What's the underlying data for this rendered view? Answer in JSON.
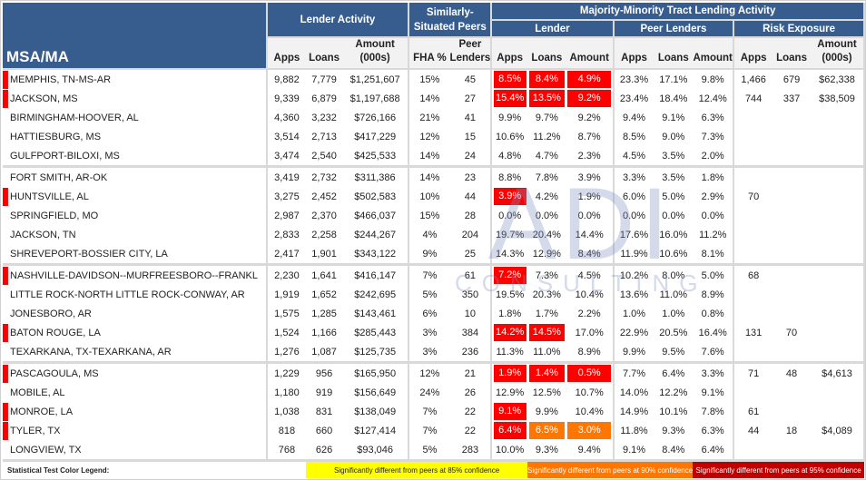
{
  "header": {
    "msa_label": "MSA/MA",
    "lender_activity": "Lender Activity",
    "similarly_situated": "Similarly-Situated Peers",
    "majority_minority": "Majority-Minority Tract Lending Activity",
    "lender": "Lender",
    "peer_lenders": "Peer Lenders",
    "risk_exposure": "Risk Exposure",
    "columns": [
      "Apps",
      "Loans",
      "Amount (000s)",
      "FHA %",
      "Peer Lenders",
      "Apps",
      "Loans",
      "Amount",
      "Apps",
      "Loans",
      "Amount",
      "Apps",
      "Loans",
      "Amount (000s)"
    ]
  },
  "colors": {
    "header_bg": "#375d8f",
    "red": "#ff0000",
    "orange": "#ff7700",
    "dark_red": "#c00000",
    "yellow": "#ffff00"
  },
  "rows": [
    {
      "name": "MEMPHIS, TN-MS-AR",
      "flag": true,
      "values": [
        "9,882",
        "7,779",
        "$1,251,607",
        "15%",
        "45",
        "8.5%",
        "8.4%",
        "4.9%",
        "23.3%",
        "17.1%",
        "9.8%",
        "1,466",
        "679",
        "$62,338"
      ],
      "hl": {
        "5": "red",
        "6": "red",
        "7": "red"
      }
    },
    {
      "name": "JACKSON, MS",
      "flag": true,
      "values": [
        "9,339",
        "6,879",
        "$1,197,688",
        "14%",
        "27",
        "15.4%",
        "13.5%",
        "9.2%",
        "23.4%",
        "18.4%",
        "12.4%",
        "744",
        "337",
        "$38,509"
      ],
      "hl": {
        "5": "red",
        "6": "red",
        "7": "red"
      }
    },
    {
      "name": "BIRMINGHAM-HOOVER, AL",
      "flag": false,
      "values": [
        "4,360",
        "3,232",
        "$726,166",
        "21%",
        "41",
        "9.9%",
        "9.7%",
        "9.2%",
        "9.4%",
        "9.1%",
        "6.3%",
        "",
        "",
        ""
      ],
      "hl": {}
    },
    {
      "name": "HATTIESBURG, MS",
      "flag": false,
      "values": [
        "3,514",
        "2,713",
        "$417,229",
        "12%",
        "15",
        "10.6%",
        "11.2%",
        "8.7%",
        "8.5%",
        "9.0%",
        "7.3%",
        "",
        "",
        ""
      ],
      "hl": {}
    },
    {
      "name": "GULFPORT-BILOXI, MS",
      "flag": false,
      "values": [
        "3,474",
        "2,540",
        "$425,533",
        "14%",
        "24",
        "4.8%",
        "4.7%",
        "2.3%",
        "4.5%",
        "3.5%",
        "2.0%",
        "",
        "",
        ""
      ],
      "hl": {}
    },
    {
      "name": "FORT SMITH, AR-OK",
      "flag": false,
      "values": [
        "3,419",
        "2,732",
        "$311,386",
        "14%",
        "23",
        "8.8%",
        "7.8%",
        "3.9%",
        "3.3%",
        "3.5%",
        "1.8%",
        "",
        "",
        ""
      ],
      "hl": {}
    },
    {
      "name": "HUNTSVILLE, AL",
      "flag": true,
      "values": [
        "3,275",
        "2,452",
        "$502,583",
        "10%",
        "44",
        "3.9%",
        "4.2%",
        "1.9%",
        "6.0%",
        "5.0%",
        "2.9%",
        "70",
        "",
        ""
      ],
      "hl": {
        "5": "red"
      }
    },
    {
      "name": "SPRINGFIELD, MO",
      "flag": false,
      "values": [
        "2,987",
        "2,370",
        "$466,037",
        "15%",
        "28",
        "0.0%",
        "0.0%",
        "0.0%",
        "0.0%",
        "0.0%",
        "0.0%",
        "",
        "",
        ""
      ],
      "hl": {}
    },
    {
      "name": "JACKSON, TN",
      "flag": false,
      "values": [
        "2,833",
        "2,258",
        "$244,267",
        "4%",
        "204",
        "19.7%",
        "20.4%",
        "14.4%",
        "17.6%",
        "16.0%",
        "11.2%",
        "",
        "",
        ""
      ],
      "hl": {}
    },
    {
      "name": "SHREVEPORT-BOSSIER CITY, LA",
      "flag": false,
      "values": [
        "2,417",
        "1,901",
        "$343,122",
        "9%",
        "25",
        "14.3%",
        "12.9%",
        "8.4%",
        "11.9%",
        "10.6%",
        "8.1%",
        "",
        "",
        ""
      ],
      "hl": {}
    },
    {
      "name": "NASHVILLE-DAVIDSON--MURFREESBORO--FRANKL",
      "flag": true,
      "values": [
        "2,230",
        "1,641",
        "$416,147",
        "7%",
        "61",
        "7.2%",
        "7.3%",
        "4.5%",
        "10.2%",
        "8.0%",
        "5.0%",
        "68",
        "",
        ""
      ],
      "hl": {
        "5": "red"
      }
    },
    {
      "name": "LITTLE ROCK-NORTH LITTLE ROCK-CONWAY, AR",
      "flag": false,
      "values": [
        "1,919",
        "1,652",
        "$242,695",
        "5%",
        "350",
        "19.5%",
        "20.3%",
        "10.4%",
        "13.6%",
        "11.0%",
        "8.9%",
        "",
        "",
        ""
      ],
      "hl": {}
    },
    {
      "name": "JONESBORO, AR",
      "flag": false,
      "values": [
        "1,575",
        "1,285",
        "$143,461",
        "6%",
        "10",
        "1.8%",
        "1.7%",
        "2.2%",
        "1.0%",
        "1.0%",
        "0.8%",
        "",
        "",
        ""
      ],
      "hl": {}
    },
    {
      "name": "BATON ROUGE, LA",
      "flag": true,
      "values": [
        "1,524",
        "1,166",
        "$285,443",
        "3%",
        "384",
        "14.2%",
        "14.5%",
        "17.0%",
        "22.9%",
        "20.5%",
        "16.4%",
        "131",
        "70",
        ""
      ],
      "hl": {
        "5": "red",
        "6": "red"
      }
    },
    {
      "name": "TEXARKANA, TX-TEXARKANA, AR",
      "flag": false,
      "values": [
        "1,276",
        "1,087",
        "$125,735",
        "3%",
        "236",
        "11.3%",
        "11.0%",
        "8.9%",
        "9.9%",
        "9.5%",
        "7.6%",
        "",
        "",
        ""
      ],
      "hl": {}
    },
    {
      "name": "PASCAGOULA, MS",
      "flag": true,
      "values": [
        "1,229",
        "956",
        "$165,950",
        "12%",
        "21",
        "1.9%",
        "1.4%",
        "0.5%",
        "7.7%",
        "6.4%",
        "3.3%",
        "71",
        "48",
        "$4,613"
      ],
      "hl": {
        "5": "red",
        "6": "red",
        "7": "red"
      }
    },
    {
      "name": "MOBILE, AL",
      "flag": false,
      "values": [
        "1,180",
        "919",
        "$156,649",
        "24%",
        "26",
        "12.9%",
        "12.5%",
        "10.7%",
        "14.0%",
        "12.2%",
        "9.1%",
        "",
        "",
        ""
      ],
      "hl": {}
    },
    {
      "name": "MONROE, LA",
      "flag": true,
      "values": [
        "1,038",
        "831",
        "$138,049",
        "7%",
        "22",
        "9.1%",
        "9.9%",
        "10.4%",
        "14.9%",
        "10.1%",
        "7.8%",
        "61",
        "",
        ""
      ],
      "hl": {
        "5": "red"
      }
    },
    {
      "name": "TYLER, TX",
      "flag": true,
      "values": [
        "818",
        "660",
        "$127,414",
        "7%",
        "22",
        "6.4%",
        "6.5%",
        "3.0%",
        "11.8%",
        "9.3%",
        "6.3%",
        "44",
        "18",
        "$4,089"
      ],
      "hl": {
        "5": "red",
        "6": "orange",
        "7": "orange"
      }
    },
    {
      "name": "LONGVIEW, TX",
      "flag": false,
      "values": [
        "768",
        "626",
        "$93,046",
        "5%",
        "283",
        "10.0%",
        "9.3%",
        "9.4%",
        "9.1%",
        "8.4%",
        "6.4%",
        "",
        "",
        ""
      ],
      "hl": {}
    }
  ],
  "legend": {
    "title": "Statistical Test Color Legend:",
    "items": [
      {
        "label": "Significantly different from peers at 85% confidence",
        "color": "#ffff00",
        "text_color": "#222222"
      },
      {
        "label": "Significantly different from peers at 90% confidence",
        "color": "#ff7700",
        "text_color": "#ffffff"
      },
      {
        "label": "Significantly different from peers at 95% confidence",
        "color": "#c00000",
        "text_color": "#ffffff"
      }
    ]
  },
  "watermark": {
    "main": "ADI",
    "sub": "CONSULTING"
  }
}
